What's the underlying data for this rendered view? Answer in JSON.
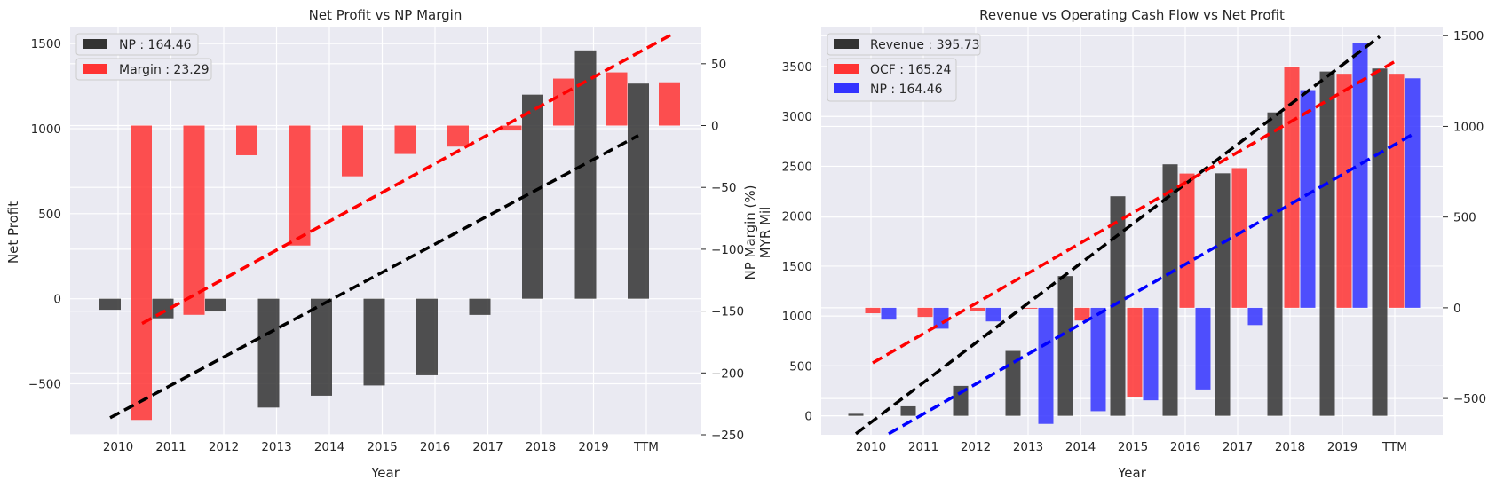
{
  "chart_data": [
    {
      "type": "bar",
      "title": "Net Profit vs NP Margin",
      "xlabel": "Year",
      "ylabel": "Net Profit",
      "ylabel_right": "NP Margin (%)",
      "categories": [
        "2010",
        "2011",
        "2012",
        "2013",
        "2014",
        "2015",
        "2016",
        "2017",
        "2018",
        "2019",
        "TTM"
      ],
      "ylim": [
        -800,
        1600
      ],
      "ylim_right": [
        -250,
        80
      ],
      "yticks": [
        -500,
        0,
        500,
        1000,
        1500
      ],
      "yticks_right": [
        -250,
        -200,
        -150,
        -100,
        -50,
        0,
        50
      ],
      "grid": true,
      "legend_position": "top-left",
      "series": [
        {
          "name": "NP : 164.46",
          "axis": "left",
          "color": "#333333",
          "values": [
            -65,
            -115,
            -75,
            -640,
            -570,
            -510,
            -450,
            -95,
            1200,
            1460,
            1265
          ]
        },
        {
          "name": "Margin : 23.29",
          "axis": "right",
          "color": "#ff3333",
          "values": [
            -238,
            -153,
            -24,
            -97,
            -41,
            -23,
            -17,
            -4,
            38,
            43,
            35
          ]
        }
      ],
      "trendlines": [
        {
          "axis": "left",
          "color": "#000000",
          "from": [
            -700
          ],
          "to": [
            960
          ]
        },
        {
          "axis": "right",
          "color": "#ff0000",
          "from": [
            -160
          ],
          "to": [
            73
          ]
        }
      ]
    },
    {
      "type": "bar",
      "title": "Revenue vs Operating Cash Flow vs Net Profit",
      "xlabel": "Year",
      "ylabel": "MYR Mil",
      "categories": [
        "2010",
        "2011",
        "2012",
        "2013",
        "2014",
        "2015",
        "2016",
        "2017",
        "2018",
        "2019",
        "TTM"
      ],
      "ylim": [
        -190,
        3900
      ],
      "ylim_right": [
        -700,
        1550
      ],
      "yticks": [
        0,
        500,
        1000,
        1500,
        2000,
        2500,
        3000,
        3500
      ],
      "yticks_right": [
        -500,
        0,
        500,
        1000,
        1500
      ],
      "grid": true,
      "legend_position": "top-left",
      "series": [
        {
          "name": "Revenue : 395.73",
          "axis": "left",
          "color": "#333333",
          "values": [
            20,
            95,
            300,
            650,
            1400,
            2200,
            2520,
            2430,
            3040,
            3450,
            3480
          ]
        },
        {
          "name": "OCF : 165.24",
          "axis": "right",
          "color": "#ff3333",
          "values": [
            -30,
            -50,
            -20,
            -5,
            -70,
            -490,
            740,
            770,
            1330,
            1290,
            1290
          ]
        },
        {
          "name": "NP : 164.46",
          "axis": "right",
          "color": "#3333ff",
          "values": [
            -65,
            -115,
            -75,
            -640,
            -570,
            -510,
            -450,
            -95,
            1200,
            1460,
            1265
          ]
        }
      ],
      "trendlines": [
        {
          "axis": "left",
          "color": "#000000",
          "from": [
            -180
          ],
          "to": [
            3800
          ]
        },
        {
          "axis": "left",
          "color": "#ff0000",
          "from": [
            530
          ],
          "to": [
            3560
          ]
        },
        {
          "axis": "left",
          "color": "#0000ff",
          "from": [
            -180
          ],
          "to": [
            2820
          ]
        }
      ]
    }
  ]
}
